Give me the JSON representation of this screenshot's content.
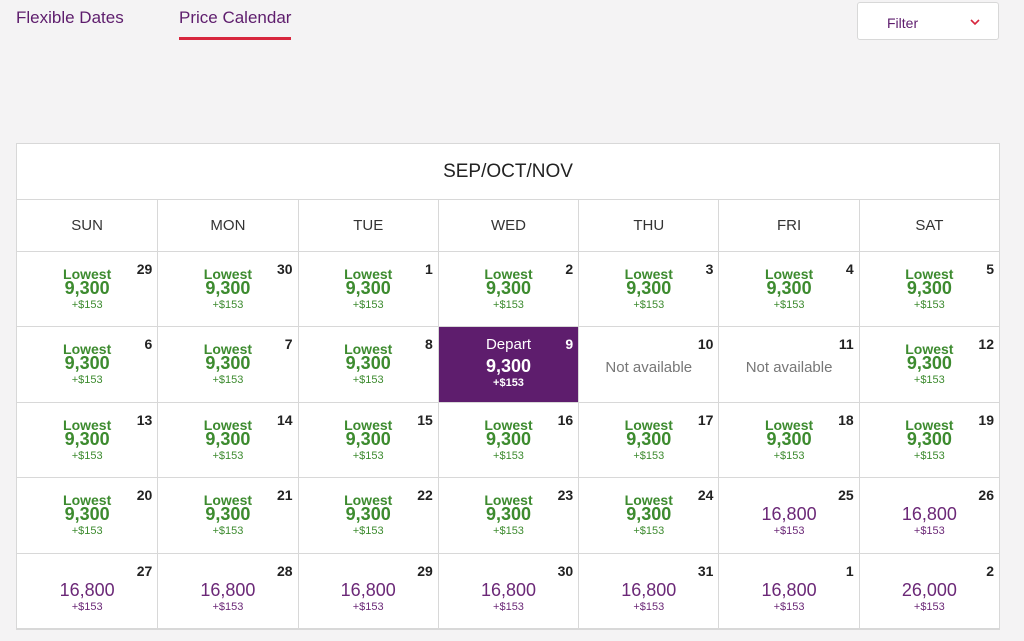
{
  "tabs": [
    "Flexible Dates",
    "Price Calendar"
  ],
  "filter": "Filter",
  "calendar": {
    "title": "SEP/OCT/NOV",
    "weekdays": [
      "SUN",
      "MON",
      "TUE",
      "WED",
      "THU",
      "FRI",
      "SAT"
    ],
    "weeks": [
      [
        {
          "day": 29,
          "label": "Lowest",
          "price": "9,300",
          "fee": "+$153",
          "color": "#3d8b2f"
        },
        {
          "day": 30,
          "label": "Lowest",
          "price": "9,300",
          "fee": "+$153",
          "color": "#3d8b2f"
        },
        {
          "day": 1,
          "label": "Lowest",
          "price": "9,300",
          "fee": "+$153",
          "color": "#3d8b2f"
        },
        {
          "day": 2,
          "label": "Lowest",
          "price": "9,300",
          "fee": "+$153",
          "color": "#3d8b2f"
        },
        {
          "day": 3,
          "label": "Lowest",
          "price": "9,300",
          "fee": "+$153",
          "color": "#3d8b2f"
        },
        {
          "day": 4,
          "label": "Lowest",
          "price": "9,300",
          "fee": "+$153",
          "color": "#3d8b2f"
        },
        {
          "day": 5,
          "label": "Lowest",
          "price": "9,300",
          "fee": "+$153",
          "color": "#3d8b2f"
        }
      ],
      [
        {
          "day": 6,
          "label": "Lowest",
          "price": "9,300",
          "fee": "+$153",
          "color": "#3d8b2f"
        },
        {
          "day": 7,
          "label": "Lowest",
          "price": "9,300",
          "fee": "+$153",
          "color": "#3d8b2f"
        },
        {
          "day": 8,
          "label": "Lowest",
          "price": "9,300",
          "fee": "+$153",
          "color": "#3d8b2f"
        },
        {
          "day": 9,
          "label": "Depart",
          "price": "9,300",
          "fee": "+$153",
          "color": "#ffffff",
          "background": "#5e1d6d"
        },
        {
          "day": 10,
          "label": "Not available",
          "color": "#777777"
        },
        {
          "day": 11,
          "label": "Not available",
          "color": "#777777"
        },
        {
          "day": 12,
          "label": "Lowest",
          "price": "9,300",
          "fee": "+$153",
          "color": "#3d8b2f"
        }
      ],
      [
        {
          "day": 13,
          "label": "Lowest",
          "price": "9,300",
          "fee": "+$153",
          "color": "#3d8b2f"
        },
        {
          "day": 14,
          "label": "Lowest",
          "price": "9,300",
          "fee": "+$153",
          "color": "#3d8b2f"
        },
        {
          "day": 15,
          "label": "Lowest",
          "price": "9,300",
          "fee": "+$153",
          "color": "#3d8b2f"
        },
        {
          "day": 16,
          "label": "Lowest",
          "price": "9,300",
          "fee": "+$153",
          "color": "#3d8b2f"
        },
        {
          "day": 17,
          "label": "Lowest",
          "price": "9,300",
          "fee": "+$153",
          "color": "#3d8b2f"
        },
        {
          "day": 18,
          "label": "Lowest",
          "price": "9,300",
          "fee": "+$153",
          "color": "#3d8b2f"
        },
        {
          "day": 19,
          "label": "Lowest",
          "price": "9,300",
          "fee": "+$153",
          "color": "#3d8b2f"
        }
      ],
      [
        {
          "day": 20,
          "label": "Lowest",
          "price": "9,300",
          "fee": "+$153",
          "color": "#3d8b2f"
        },
        {
          "day": 21,
          "label": "Lowest",
          "price": "9,300",
          "fee": "+$153",
          "color": "#3d8b2f"
        },
        {
          "day": 22,
          "label": "Lowest",
          "price": "9,300",
          "fee": "+$153",
          "color": "#3d8b2f"
        },
        {
          "day": 23,
          "label": "Lowest",
          "price": "9,300",
          "fee": "+$153",
          "color": "#3d8b2f"
        },
        {
          "day": 24,
          "label": "Lowest",
          "price": "9,300",
          "fee": "+$153",
          "color": "#3d8b2f"
        },
        {
          "day": 25,
          "price": "16,800",
          "fee": "+$153",
          "color": "#6b2877"
        },
        {
          "day": 26,
          "price": "16,800",
          "fee": "+$153",
          "color": "#6b2877"
        }
      ],
      [
        {
          "day": 27,
          "price": "16,800",
          "fee": "+$153",
          "color": "#6b2877"
        },
        {
          "day": 28,
          "price": "16,800",
          "fee": "+$153",
          "color": "#6b2877"
        },
        {
          "day": 29,
          "price": "16,800",
          "fee": "+$153",
          "color": "#6b2877"
        },
        {
          "day": 30,
          "price": "16,800",
          "fee": "+$153",
          "color": "#6b2877"
        },
        {
          "day": 31,
          "price": "16,800",
          "fee": "+$153",
          "color": "#6b2877"
        },
        {
          "day": 1,
          "price": "16,800",
          "fee": "+$153",
          "color": "#6b2877"
        },
        {
          "day": 2,
          "price": "26,000",
          "fee": "+$153",
          "color": "#6b2877"
        }
      ]
    ]
  }
}
